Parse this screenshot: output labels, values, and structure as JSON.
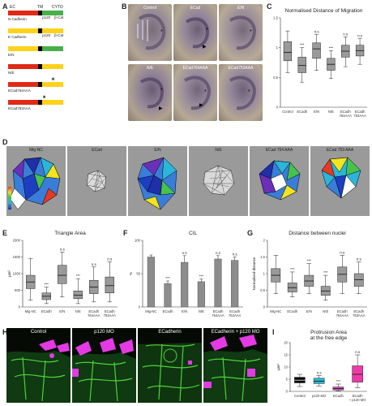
{
  "panels": {
    "A": "A",
    "B": "B",
    "C": "C",
    "D": "D",
    "E": "E",
    "F": "F",
    "G": "G",
    "H": "H",
    "I": "I"
  },
  "panelA": {
    "header": {
      "ec": "EC",
      "tm": "TM",
      "cyto": "CYTO"
    },
    "constructs": [
      {
        "label": "N Cadherin",
        "segments": [
          {
            "w": 0.55,
            "color": "#e02a18"
          },
          {
            "w": 0.07,
            "color": "#000000"
          },
          {
            "w": 0.38,
            "color": "#48b04a"
          }
        ],
        "marks": [
          "p120",
          "β-Cat"
        ],
        "star": null
      },
      {
        "label": "E Cadherin",
        "segments": [
          {
            "w": 0.55,
            "color": "#ffd21a"
          },
          {
            "w": 0.07,
            "color": "#000000"
          },
          {
            "w": 0.38,
            "color": "#ffd21a"
          }
        ],
        "marks": [
          "p120",
          "β-Cat"
        ],
        "star": null
      },
      {
        "label": "E/N",
        "segments": [
          {
            "w": 0.55,
            "color": "#ffd21a"
          },
          {
            "w": 0.07,
            "color": "#000000"
          },
          {
            "w": 0.38,
            "color": "#48b04a"
          }
        ],
        "marks": [],
        "star": null
      },
      {
        "label": "N/E",
        "segments": [
          {
            "w": 0.55,
            "color": "#e02a18"
          },
          {
            "w": 0.07,
            "color": "#000000"
          },
          {
            "w": 0.38,
            "color": "#ffd21a"
          }
        ],
        "marks": [],
        "star": null
      },
      {
        "label": "ECad764AAA",
        "segments": [
          {
            "w": 0.55,
            "color": "#e02a18"
          },
          {
            "w": 0.07,
            "color": "#000000"
          },
          {
            "w": 0.38,
            "color": "#ffd21a"
          }
        ],
        "marks": [],
        "star": 0.82
      },
      {
        "label": "ECad753AAA",
        "segments": [
          {
            "w": 0.55,
            "color": "#e02a18"
          },
          {
            "w": 0.07,
            "color": "#000000"
          },
          {
            "w": 0.38,
            "color": "#ffd21a"
          }
        ],
        "marks": [],
        "star": 0.66
      }
    ]
  },
  "panelB": {
    "tiles": [
      "Control",
      "ECad",
      "E/N",
      "N/E",
      "ECad764AAA",
      "ECad753AAA"
    ]
  },
  "panelD": {
    "panels": [
      "Mig-NC",
      "ECad",
      "E/N",
      "N/E",
      "ECad 764 AAA",
      "ECad 753 AAA"
    ]
  },
  "panelH": {
    "panels": [
      "Control",
      "p120 MO",
      "ECadherin",
      "ECadherin + p120 MO"
    ]
  },
  "chart_data": [
    {
      "id": "C",
      "type": "boxplot",
      "title": "Normalised Distance of Migration",
      "ylabel": "",
      "ylim": [
        0,
        1.5
      ],
      "yticks": [
        0,
        0.5,
        1,
        1.5
      ],
      "categories": [
        "Control",
        "ECadh",
        "E/N",
        "N/E",
        "ECadh 764AAA",
        "ECadh 753AAA"
      ],
      "boxes": [
        {
          "min": 0.58,
          "q1": 0.78,
          "median": 0.92,
          "q3": 1.1,
          "max": 1.28,
          "color": "#9a9a9a"
        },
        {
          "min": 0.42,
          "q1": 0.58,
          "median": 0.7,
          "q3": 0.84,
          "max": 1.0,
          "color": "#9a9a9a"
        },
        {
          "min": 0.62,
          "q1": 0.82,
          "median": 0.98,
          "q3": 1.08,
          "max": 1.22,
          "color": "#9a9a9a"
        },
        {
          "min": 0.48,
          "q1": 0.62,
          "median": 0.72,
          "q3": 0.82,
          "max": 0.95,
          "color": "#9a9a9a"
        },
        {
          "min": 0.68,
          "q1": 0.84,
          "median": 0.94,
          "q3": 1.04,
          "max": 1.18,
          "color": "#9a9a9a"
        },
        {
          "min": 0.72,
          "q1": 0.86,
          "median": 0.95,
          "q3": 1.04,
          "max": 1.15,
          "color": "#9a9a9a"
        }
      ],
      "annotations": [
        "",
        "***",
        "n.s",
        "***",
        "n.s",
        "n.s"
      ]
    },
    {
      "id": "E",
      "type": "boxplot",
      "title": "Triangle Area",
      "ylabel": "μm²",
      "ylim": [
        0,
        2000
      ],
      "yticks": [
        0,
        500,
        1000,
        1500,
        2000
      ],
      "ytick_labels": [
        "0",
        "500",
        "1000",
        "1500",
        "2000"
      ],
      "categories": [
        "Mig-NC",
        "ECadh",
        "E/N",
        "N/E",
        "ECadh 764AAA",
        "ECadh 753AAA"
      ],
      "boxes": [
        {
          "min": 200,
          "q1": 550,
          "median": 750,
          "q3": 950,
          "max": 1450,
          "color": "#9a9a9a"
        },
        {
          "min": 100,
          "q1": 220,
          "median": 320,
          "q3": 420,
          "max": 600,
          "color": "#9a9a9a"
        },
        {
          "min": 300,
          "q1": 700,
          "median": 950,
          "q3": 1250,
          "max": 1650,
          "color": "#9a9a9a"
        },
        {
          "min": 100,
          "q1": 250,
          "median": 350,
          "q3": 480,
          "max": 850,
          "color": "#9a9a9a"
        },
        {
          "min": 150,
          "q1": 400,
          "median": 600,
          "q3": 800,
          "max": 1200,
          "color": "#9a9a9a"
        },
        {
          "min": 150,
          "q1": 420,
          "median": 640,
          "q3": 900,
          "max": 1350,
          "color": "#9a9a9a"
        }
      ],
      "annotations": [
        "",
        "***",
        "n.s",
        "***",
        "n.s",
        "n.s"
      ]
    },
    {
      "id": "F",
      "type": "bar",
      "title": "CIL",
      "ylabel": "%",
      "ylim": [
        0,
        100
      ],
      "yticks": [
        0,
        50,
        100
      ],
      "ytick_labels": [
        "0",
        "50",
        "100"
      ],
      "categories": [
        "Mig-NC",
        "ECadh",
        "E/N",
        "N/E",
        "ECadh 764AAA",
        "ECadh 753AAA"
      ],
      "values": [
        75,
        35,
        67,
        38,
        72,
        70
      ],
      "errors": [
        3,
        4,
        10,
        4,
        5,
        5
      ],
      "annotations": [
        "",
        "***",
        "n.s",
        "***",
        "n.s",
        "n.s"
      ]
    },
    {
      "id": "G",
      "type": "boxplot",
      "title": "Distance between nuclei",
      "ylabel": "Normalised distance",
      "ylim": [
        0,
        2
      ],
      "yticks": [
        0,
        0.5,
        1,
        1.5,
        2
      ],
      "ytick_labels": [
        "0",
        "0.5",
        "1",
        "1.5",
        "2"
      ],
      "categories": [
        "Mig-NC",
        "ECadh",
        "E/N",
        "N/E",
        "ECadh 764AAA",
        "ECadh 753AAA"
      ],
      "boxes": [
        {
          "min": 0.4,
          "q1": 0.75,
          "median": 0.95,
          "q3": 1.15,
          "max": 1.55,
          "color": "#9a9a9a"
        },
        {
          "min": 0.3,
          "q1": 0.45,
          "median": 0.58,
          "q3": 0.72,
          "max": 1.05,
          "color": "#9a9a9a"
        },
        {
          "min": 0.4,
          "q1": 0.62,
          "median": 0.78,
          "q3": 0.95,
          "max": 1.3,
          "color": "#9a9a9a"
        },
        {
          "min": 0.2,
          "q1": 0.35,
          "median": 0.48,
          "q3": 0.62,
          "max": 0.95,
          "color": "#9a9a9a"
        },
        {
          "min": 0.4,
          "q1": 0.75,
          "median": 0.98,
          "q3": 1.2,
          "max": 1.55,
          "color": "#9a9a9a"
        },
        {
          "min": 0.4,
          "q1": 0.62,
          "median": 0.82,
          "q3": 1.0,
          "max": 1.35,
          "color": "#9a9a9a"
        }
      ],
      "annotations": [
        "",
        "***",
        "***",
        "***",
        "n.s",
        "n.s"
      ]
    },
    {
      "id": "I",
      "type": "boxplot",
      "title": "Protrusion Area\nat the free edge",
      "ylabel": "μm²",
      "ylim": [
        0,
        20
      ],
      "yticks": [
        0,
        5,
        10,
        15,
        20
      ],
      "ytick_labels": [
        "0",
        "5",
        "10",
        "15",
        "20"
      ],
      "categories": [
        "Control",
        "p120 MO",
        "ECadh",
        "ECadh + p120 MO"
      ],
      "boxes": [
        {
          "min": 2.0,
          "q1": 3.5,
          "median": 4.6,
          "q3": 5.8,
          "max": 7.0,
          "color": "#000000"
        },
        {
          "min": 2.2,
          "q1": 3.2,
          "median": 4.2,
          "q3": 5.4,
          "max": 6.5,
          "color": "#2ab5d6"
        },
        {
          "min": 0.2,
          "q1": 0.6,
          "median": 1.2,
          "q3": 1.8,
          "max": 3.0,
          "color": "#d64fbd"
        },
        {
          "min": 1.5,
          "q1": 3.8,
          "median": 7.0,
          "q3": 10.5,
          "max": 15.0,
          "color": "#ee3aa8"
        }
      ],
      "annotations": [
        "",
        "n.s",
        "***",
        "n.s"
      ]
    }
  ]
}
